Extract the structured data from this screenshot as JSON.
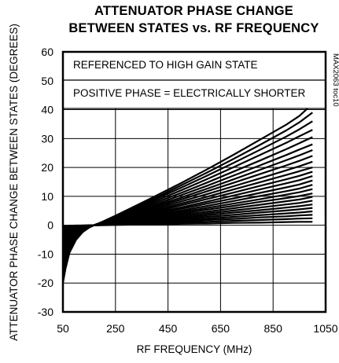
{
  "chart_data": {
    "type": "line",
    "title_line1": "ATTENUATOR PHASE CHANGE",
    "title_line2": "BETWEEN STATES vs. RF FREQUENCY",
    "xlabel": "RF FREQUENCY (MHz)",
    "ylabel": "ATTENUATOR PHASE CHANGE BETWEEN STATES (DEGREES)",
    "xlim": [
      50,
      1050
    ],
    "ylim": [
      -30,
      60
    ],
    "xticks": [
      "50",
      "250",
      "450",
      "650",
      "850",
      "1050"
    ],
    "yticks": [
      "60",
      "50",
      "40",
      "30",
      "20",
      "10",
      "0",
      "-10",
      "-20",
      "-30"
    ],
    "grid": true,
    "annotations": [
      "REFERENCED TO HIGH GAIN STATE",
      "POSITIVE PHASE = ELECTRICALLY SHORTER"
    ],
    "figure_code": "MAX2063 toc10",
    "x": [
      50,
      60,
      75,
      100,
      125,
      150,
      175,
      200,
      250,
      300,
      400,
      500,
      600,
      700,
      800,
      900,
      950,
      1000
    ],
    "series": [
      {
        "values": [
          -20,
          -15,
          -9.5,
          -5,
          -2.4,
          -0.8,
          0.3,
          1.2,
          3.3,
          5.5,
          10,
          14.6,
          19.4,
          24.4,
          29.6,
          34.8,
          37.8,
          42
        ]
      },
      {
        "values": [
          -18.5,
          -14,
          -8.8,
          -4.6,
          -2.2,
          -0.7,
          0.3,
          1.1,
          3.1,
          5.2,
          9.4,
          13.8,
          18.3,
          23,
          27.8,
          32.8,
          35.6,
          39
        ]
      },
      {
        "values": [
          -17,
          -12.8,
          -8,
          -4.2,
          -2,
          -0.6,
          0.3,
          1,
          2.9,
          4.9,
          8.9,
          13,
          17.2,
          21.6,
          26.1,
          30.7,
          33.2,
          36
        ]
      },
      {
        "values": [
          -15.5,
          -11.7,
          -7.3,
          -3.8,
          -1.8,
          -0.6,
          0.2,
          0.9,
          2.7,
          4.6,
          8.3,
          12.1,
          16,
          20.1,
          24.3,
          28.5,
          30.8,
          33
        ]
      },
      {
        "values": [
          -14,
          -10.6,
          -6.6,
          -3.5,
          -1.7,
          -0.5,
          0.2,
          0.9,
          2.5,
          4.2,
          7.7,
          11.2,
          14.8,
          18.6,
          22.4,
          26.3,
          28.4,
          30.5
        ]
      },
      {
        "values": [
          -12.8,
          -9.7,
          -6,
          -3.2,
          -1.5,
          -0.5,
          0.2,
          0.8,
          2.3,
          3.9,
          7.1,
          10.4,
          13.7,
          17.2,
          20.7,
          24.3,
          26.2,
          28
        ]
      },
      {
        "values": [
          -11.6,
          -8.8,
          -5.5,
          -2.9,
          -1.4,
          -0.4,
          0.2,
          0.7,
          2.1,
          3.6,
          6.6,
          9.6,
          12.7,
          15.9,
          19.2,
          22.5,
          24.2,
          26
        ]
      },
      {
        "values": [
          -10.5,
          -8,
          -5,
          -2.6,
          -1.3,
          -0.4,
          0.2,
          0.7,
          2,
          3.3,
          6.1,
          8.9,
          11.8,
          14.7,
          17.7,
          20.7,
          22.3,
          24
        ]
      },
      {
        "values": [
          -9.5,
          -7.2,
          -4.5,
          -2.4,
          -1.2,
          -0.4,
          0.2,
          0.6,
          1.8,
          3.1,
          5.6,
          8.2,
          10.8,
          13.5,
          16.2,
          19,
          20.4,
          22
        ]
      },
      {
        "values": [
          -8.6,
          -6.5,
          -4.1,
          -2.2,
          -1.1,
          -0.3,
          0.1,
          0.6,
          1.7,
          2.8,
          5.1,
          7.5,
          9.9,
          12.4,
          14.9,
          17.4,
          18.7,
          20
        ]
      },
      {
        "values": [
          -7.7,
          -5.9,
          -3.7,
          -2,
          -1,
          -0.3,
          0.1,
          0.5,
          1.5,
          2.6,
          4.7,
          6.9,
          9.1,
          11.3,
          13.6,
          15.9,
          17.1,
          18.5
        ]
      },
      {
        "values": [
          -6.9,
          -5.3,
          -3.3,
          -1.8,
          -0.9,
          -0.3,
          0.1,
          0.5,
          1.4,
          2.3,
          4.3,
          6.2,
          8.2,
          10.3,
          12.4,
          14.5,
          15.6,
          17
        ]
      },
      {
        "values": [
          -6.1,
          -4.7,
          -3,
          -1.6,
          -0.8,
          -0.3,
          0.1,
          0.4,
          1.2,
          2.1,
          3.9,
          5.7,
          7.5,
          9.3,
          11.2,
          13.1,
          14.1,
          15.5
        ]
      },
      {
        "values": [
          -5.4,
          -4.2,
          -2.7,
          -1.4,
          -0.7,
          -0.2,
          0.1,
          0.4,
          1.1,
          1.9,
          3.5,
          5.1,
          6.7,
          8.4,
          10.1,
          11.8,
          12.7,
          14
        ]
      },
      {
        "values": [
          -4.8,
          -3.7,
          -2.4,
          -1.3,
          -0.6,
          -0.2,
          0.1,
          0.3,
          1,
          1.7,
          3.1,
          4.6,
          6,
          7.5,
          9,
          10.6,
          11.4,
          12.5
        ]
      },
      {
        "values": [
          -4.2,
          -3.2,
          -2.1,
          -1.1,
          -0.6,
          -0.2,
          0.1,
          0.3,
          0.9,
          1.5,
          2.8,
          4.1,
          5.4,
          6.7,
          8.1,
          9.4,
          10.1,
          11
        ]
      },
      {
        "values": [
          -3.6,
          -2.8,
          -1.8,
          -1,
          -0.5,
          -0.2,
          0.1,
          0.3,
          0.8,
          1.3,
          2.4,
          3.6,
          4.7,
          5.9,
          7.1,
          8.3,
          8.9,
          9.8
        ]
      },
      {
        "values": [
          -3.1,
          -2.4,
          -1.5,
          -0.8,
          -0.4,
          -0.1,
          0,
          0.2,
          0.7,
          1.1,
          2.1,
          3.1,
          4.1,
          5.1,
          6.1,
          7.2,
          7.7,
          8.5
        ]
      },
      {
        "values": [
          -2.6,
          -2,
          -1.3,
          -0.7,
          -0.4,
          -0.1,
          0,
          0.2,
          0.6,
          1,
          1.8,
          2.6,
          3.5,
          4.4,
          5.2,
          6.1,
          6.6,
          7.2
        ]
      },
      {
        "values": [
          -2.1,
          -1.6,
          -1,
          -0.6,
          -0.3,
          -0.1,
          0,
          0.2,
          0.5,
          0.8,
          1.5,
          2.2,
          2.9,
          3.6,
          4.4,
          5.1,
          5.5,
          6
        ]
      },
      {
        "values": [
          -1.6,
          -1.2,
          -0.8,
          -0.4,
          -0.2,
          -0.1,
          0,
          0.1,
          0.4,
          0.6,
          1.2,
          1.8,
          2.3,
          2.9,
          3.5,
          4.1,
          4.4,
          4.8
        ]
      },
      {
        "values": [
          -1.2,
          -0.9,
          -0.6,
          -0.3,
          -0.2,
          -0.1,
          0,
          0.1,
          0.3,
          0.5,
          0.9,
          1.3,
          1.8,
          2.2,
          2.7,
          3.1,
          3.4,
          3.6
        ]
      },
      {
        "values": [
          -0.8,
          -0.6,
          -0.4,
          -0.2,
          -0.1,
          0,
          0,
          0.1,
          0.2,
          0.3,
          0.6,
          0.9,
          1.2,
          1.5,
          1.8,
          2.1,
          2.3,
          2.4
        ]
      },
      {
        "values": [
          -0.4,
          -0.3,
          -0.2,
          -0.1,
          -0.1,
          0,
          0,
          0,
          0.1,
          0.2,
          0.3,
          0.5,
          0.6,
          0.8,
          0.9,
          1.1,
          1.2,
          1.2
        ]
      }
    ]
  }
}
